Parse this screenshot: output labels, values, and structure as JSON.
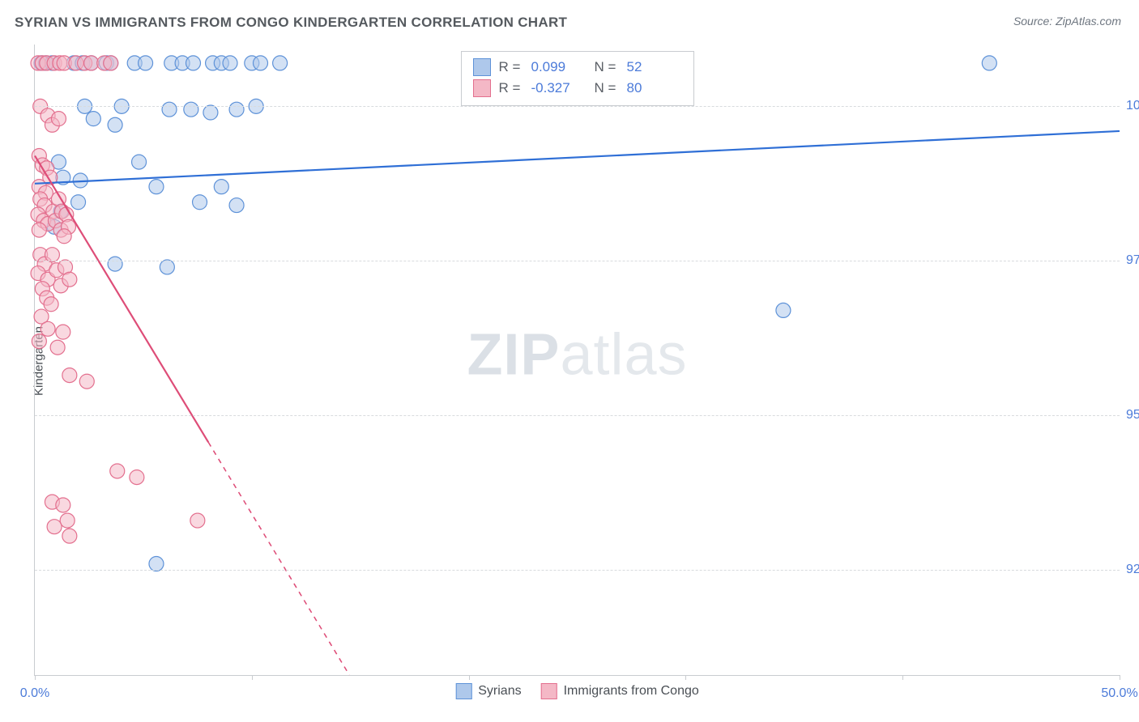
{
  "title": "SYRIAN VS IMMIGRANTS FROM CONGO KINDERGARTEN CORRELATION CHART",
  "source_label": "Source:",
  "source_name": "ZipAtlas.com",
  "y_axis_title": "Kindergarten",
  "watermark_bold": "ZIP",
  "watermark_light": "atlas",
  "chart": {
    "type": "scatter",
    "background_color": "#ffffff",
    "grid_color": "#d8dbde",
    "axis_color": "#c9ccd0",
    "tick_label_color": "#4c7bd9",
    "tick_fontsize": 16,
    "title_color": "#555a5f",
    "title_fontsize": 17,
    "xlim": [
      0.0,
      50.0
    ],
    "ylim": [
      90.8,
      101.0
    ],
    "x_ticks": [
      0.0,
      10.0,
      20.0,
      30.0,
      40.0,
      50.0
    ],
    "x_tick_labels": [
      "0.0%",
      "",
      "",
      "",
      "",
      "50.0%"
    ],
    "y_ticks": [
      92.5,
      95.0,
      97.5,
      100.0
    ],
    "y_tick_labels": [
      "92.5%",
      "95.0%",
      "97.5%",
      "100.0%"
    ],
    "marker_radius": 9,
    "marker_stroke_width": 1.2,
    "trend_line_width": 2.2,
    "series": [
      {
        "name": "Syrians",
        "legend_label": "Syrians",
        "fill": "#aec8eb",
        "stroke": "#5e92d8",
        "fill_opacity": 0.55,
        "R": "0.099",
        "N": "52",
        "trend": {
          "x1": 0.0,
          "y1": 98.75,
          "x2": 50.0,
          "y2": 99.6,
          "color": "#2f6fd6",
          "solid_until_x": 50.0
        },
        "points": [
          [
            0.3,
            100.7
          ],
          [
            0.5,
            100.7
          ],
          [
            0.8,
            100.7
          ],
          [
            1.8,
            100.7
          ],
          [
            2.2,
            100.7
          ],
          [
            2.6,
            100.7
          ],
          [
            3.3,
            100.7
          ],
          [
            3.5,
            100.7
          ],
          [
            4.6,
            100.7
          ],
          [
            5.1,
            100.7
          ],
          [
            6.3,
            100.7
          ],
          [
            6.8,
            100.7
          ],
          [
            7.3,
            100.7
          ],
          [
            8.2,
            100.7
          ],
          [
            8.6,
            100.7
          ],
          [
            9.0,
            100.7
          ],
          [
            10.0,
            100.7
          ],
          [
            10.4,
            100.7
          ],
          [
            11.3,
            100.7
          ],
          [
            26.0,
            100.7
          ],
          [
            44.0,
            100.7
          ],
          [
            2.3,
            100.0
          ],
          [
            2.7,
            99.8
          ],
          [
            4.0,
            100.0
          ],
          [
            3.7,
            99.7
          ],
          [
            6.2,
            99.95
          ],
          [
            7.2,
            99.95
          ],
          [
            8.1,
            99.9
          ],
          [
            9.3,
            99.95
          ],
          [
            10.2,
            100.0
          ],
          [
            1.1,
            99.1
          ],
          [
            1.3,
            98.85
          ],
          [
            2.1,
            98.8
          ],
          [
            2.0,
            98.45
          ],
          [
            1.2,
            98.3
          ],
          [
            0.9,
            98.05
          ],
          [
            4.8,
            99.1
          ],
          [
            5.6,
            98.7
          ],
          [
            7.6,
            98.45
          ],
          [
            8.6,
            98.7
          ],
          [
            9.3,
            98.4
          ],
          [
            3.7,
            97.45
          ],
          [
            6.1,
            97.4
          ],
          [
            34.5,
            96.7
          ],
          [
            5.6,
            92.6
          ]
        ]
      },
      {
        "name": "Immigrants from Congo",
        "legend_label": "Immigrants from Congo",
        "fill": "#f4b8c6",
        "stroke": "#e36f8e",
        "fill_opacity": 0.55,
        "R": "-0.327",
        "N": "80",
        "trend": {
          "x1": 0.0,
          "y1": 99.2,
          "x2": 14.5,
          "y2": 90.8,
          "color": "#de4d78",
          "solid_until_x": 8.0
        },
        "points": [
          [
            0.15,
            100.7
          ],
          [
            0.35,
            100.7
          ],
          [
            0.55,
            100.7
          ],
          [
            0.9,
            100.7
          ],
          [
            1.15,
            100.7
          ],
          [
            1.35,
            100.7
          ],
          [
            1.9,
            100.7
          ],
          [
            2.3,
            100.7
          ],
          [
            2.6,
            100.7
          ],
          [
            3.2,
            100.7
          ],
          [
            3.5,
            100.7
          ],
          [
            0.25,
            100.0
          ],
          [
            0.6,
            99.85
          ],
          [
            0.8,
            99.7
          ],
          [
            1.1,
            99.8
          ],
          [
            0.2,
            99.2
          ],
          [
            0.35,
            99.05
          ],
          [
            0.55,
            99.0
          ],
          [
            0.7,
            98.85
          ],
          [
            0.2,
            98.7
          ],
          [
            0.5,
            98.6
          ],
          [
            0.25,
            98.5
          ],
          [
            0.45,
            98.4
          ],
          [
            0.15,
            98.25
          ],
          [
            0.4,
            98.15
          ],
          [
            0.6,
            98.1
          ],
          [
            0.2,
            98.0
          ],
          [
            0.85,
            98.3
          ],
          [
            0.95,
            98.15
          ],
          [
            1.1,
            98.5
          ],
          [
            1.25,
            98.3
          ],
          [
            1.2,
            98.0
          ],
          [
            1.45,
            98.25
          ],
          [
            1.55,
            98.05
          ],
          [
            1.35,
            97.9
          ],
          [
            0.25,
            97.6
          ],
          [
            0.45,
            97.45
          ],
          [
            0.15,
            97.3
          ],
          [
            0.6,
            97.2
          ],
          [
            0.35,
            97.05
          ],
          [
            0.55,
            96.9
          ],
          [
            0.75,
            96.8
          ],
          [
            0.3,
            96.6
          ],
          [
            0.8,
            97.6
          ],
          [
            1.0,
            97.35
          ],
          [
            1.2,
            97.1
          ],
          [
            1.4,
            97.4
          ],
          [
            1.6,
            97.2
          ],
          [
            0.6,
            96.4
          ],
          [
            0.2,
            96.2
          ],
          [
            1.3,
            96.35
          ],
          [
            1.05,
            96.1
          ],
          [
            1.6,
            95.65
          ],
          [
            2.4,
            95.55
          ],
          [
            3.8,
            94.1
          ],
          [
            4.7,
            94.0
          ],
          [
            0.8,
            93.6
          ],
          [
            1.3,
            93.55
          ],
          [
            1.5,
            93.3
          ],
          [
            0.9,
            93.2
          ],
          [
            1.6,
            93.05
          ],
          [
            7.5,
            93.3
          ]
        ]
      }
    ],
    "legend_stats": {
      "R_label": "R =",
      "N_label": "N ="
    },
    "bottom_legend_swatch_size": 20
  }
}
